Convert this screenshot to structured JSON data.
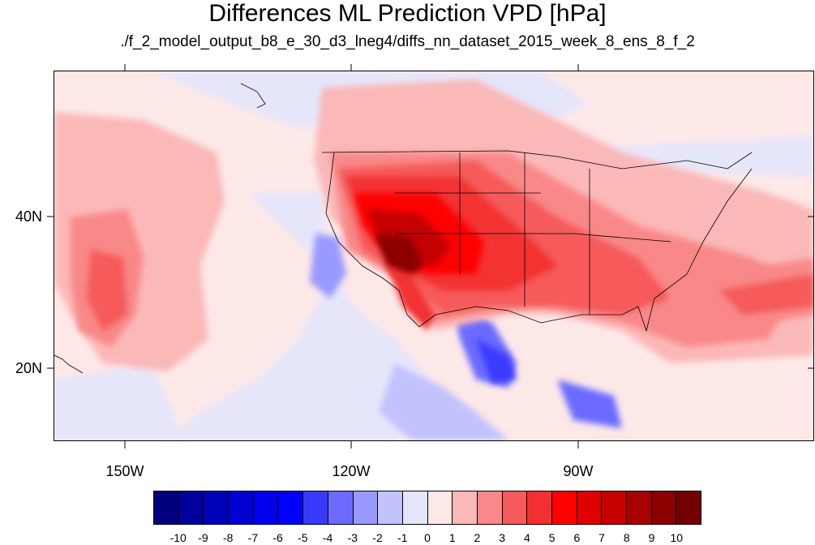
{
  "header": {
    "title": "Differences ML Prediction VPD [hPa]",
    "subtitle": "./f_2_model_output_b8_e_30_d3_lneg4/diffs_nn_dataset_2015_week_8_ens_8_f_2"
  },
  "map": {
    "lat_labels": [
      "40N",
      "20N"
    ],
    "lon_labels": [
      "150W",
      "120W",
      "90W"
    ],
    "background_color": "#fde8e8"
  },
  "colorbar": {
    "labels": [
      "-10",
      "-9",
      "-8",
      "-7",
      "-6",
      "-5",
      "-4",
      "-3",
      "-2",
      "-1",
      "0",
      "1",
      "2",
      "3",
      "4",
      "5",
      "6",
      "7",
      "8",
      "9",
      "10"
    ],
    "colors": [
      "#00007f",
      "#00009c",
      "#0000b8",
      "#0000d4",
      "#0000ee",
      "#0000ff",
      "#3a3aff",
      "#6a6aff",
      "#9999ff",
      "#c2c2ff",
      "#e6e6fa",
      "#fde8e8",
      "#fbb8b8",
      "#f98888",
      "#f65a5a",
      "#f33030",
      "#ff0000",
      "#e00000",
      "#c40000",
      "#a80000",
      "#8c0000",
      "#730000"
    ]
  }
}
